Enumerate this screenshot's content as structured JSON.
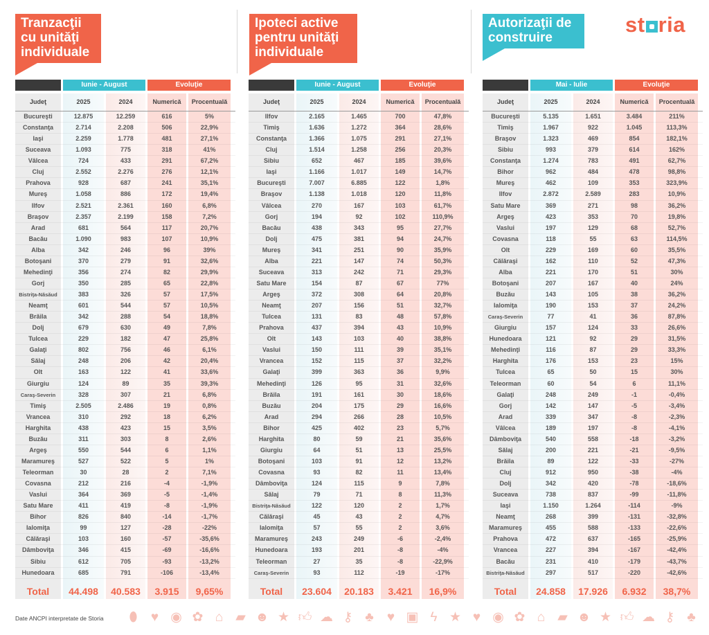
{
  "logo": "storia",
  "colors": {
    "accent": "#f06449",
    "teal": "#3bbfcf",
    "dark": "#3a3a3a"
  },
  "column_headers": {
    "judet": "Judeţ",
    "y2025": "2025",
    "y2024": "2024",
    "numerica": "Numerică",
    "procentuala": "Procentuală",
    "evolutie": "Evoluţie",
    "total": "Total"
  },
  "panels": [
    {
      "title": "Tranzacţii cu unităţi individuale",
      "period": "Iunie - August",
      "rows": [
        [
          "Bucureşti",
          "12.875",
          "12.259",
          "616",
          "5%"
        ],
        [
          "Constanţa",
          "2.714",
          "2.208",
          "506",
          "22,9%"
        ],
        [
          "Iaşi",
          "2.259",
          "1.778",
          "481",
          "27,1%"
        ],
        [
          "Suceava",
          "1.093",
          "775",
          "318",
          "41%"
        ],
        [
          "Vâlcea",
          "724",
          "433",
          "291",
          "67,2%"
        ],
        [
          "Cluj",
          "2.552",
          "2.276",
          "276",
          "12,1%"
        ],
        [
          "Prahova",
          "928",
          "687",
          "241",
          "35,1%"
        ],
        [
          "Mureş",
          "1.058",
          "886",
          "172",
          "19,4%"
        ],
        [
          "Ilfov",
          "2.521",
          "2.361",
          "160",
          "6,8%"
        ],
        [
          "Braşov",
          "2.357",
          "2.199",
          "158",
          "7,2%"
        ],
        [
          "Arad",
          "681",
          "564",
          "117",
          "20,7%"
        ],
        [
          "Bacău",
          "1.090",
          "983",
          "107",
          "10,9%"
        ],
        [
          "Alba",
          "342",
          "246",
          "96",
          "39%"
        ],
        [
          "Botoşani",
          "370",
          "279",
          "91",
          "32,6%"
        ],
        [
          "Mehedinţi",
          "356",
          "274",
          "82",
          "29,9%"
        ],
        [
          "Gorj",
          "350",
          "285",
          "65",
          "22,8%"
        ],
        [
          "Bistriţa-Năsăud",
          "383",
          "326",
          "57",
          "17,5%"
        ],
        [
          "Neamţ",
          "601",
          "544",
          "57",
          "10,5%"
        ],
        [
          "Brăila",
          "342",
          "288",
          "54",
          "18,8%"
        ],
        [
          "Dolj",
          "679",
          "630",
          "49",
          "7,8%"
        ],
        [
          "Tulcea",
          "229",
          "182",
          "47",
          "25,8%"
        ],
        [
          "Galaţi",
          "802",
          "756",
          "46",
          "6,1%"
        ],
        [
          "Sălaj",
          "248",
          "206",
          "42",
          "20,4%"
        ],
        [
          "Olt",
          "163",
          "122",
          "41",
          "33,6%"
        ],
        [
          "Giurgiu",
          "124",
          "89",
          "35",
          "39,3%"
        ],
        [
          "Caraş-Severin",
          "328",
          "307",
          "21",
          "6,8%"
        ],
        [
          "Timiş",
          "2.505",
          "2.486",
          "19",
          "0,8%"
        ],
        [
          "Vrancea",
          "310",
          "292",
          "18",
          "6,2%"
        ],
        [
          "Harghita",
          "438",
          "423",
          "15",
          "3,5%"
        ],
        [
          "Buzău",
          "311",
          "303",
          "8",
          "2,6%"
        ],
        [
          "Argeş",
          "550",
          "544",
          "6",
          "1,1%"
        ],
        [
          "Maramureş",
          "527",
          "522",
          "5",
          "1%"
        ],
        [
          "Teleorman",
          "30",
          "28",
          "2",
          "7,1%"
        ],
        [
          "Covasna",
          "212",
          "216",
          "-4",
          "-1,9%"
        ],
        [
          "Vaslui",
          "364",
          "369",
          "-5",
          "-1,4%"
        ],
        [
          "Satu Mare",
          "411",
          "419",
          "-8",
          "-1,9%"
        ],
        [
          "Bihor",
          "826",
          "840",
          "-14",
          "-1,7%"
        ],
        [
          "Ialomiţa",
          "99",
          "127",
          "-28",
          "-22%"
        ],
        [
          "Călăraşi",
          "103",
          "160",
          "-57",
          "-35,6%"
        ],
        [
          "Dâmboviţa",
          "346",
          "415",
          "-69",
          "-16,6%"
        ],
        [
          "Sibiu",
          "612",
          "705",
          "-93",
          "-13,2%"
        ],
        [
          "Hunedoara",
          "685",
          "791",
          "-106",
          "-13,4%"
        ]
      ],
      "total": [
        "44.498",
        "40.583",
        "3.915",
        "9,65%"
      ]
    },
    {
      "title": "Ipoteci active pentru unităţi individuale",
      "period": "Iunie - August",
      "rows": [
        [
          "Ilfov",
          "2.165",
          "1.465",
          "700",
          "47,8%"
        ],
        [
          "Timiş",
          "1.636",
          "1.272",
          "364",
          "28,6%"
        ],
        [
          "Constanţa",
          "1.366",
          "1.075",
          "291",
          "27,1%"
        ],
        [
          "Cluj",
          "1.514",
          "1.258",
          "256",
          "20,3%"
        ],
        [
          "Sibiu",
          "652",
          "467",
          "185",
          "39,6%"
        ],
        [
          "Iaşi",
          "1.166",
          "1.017",
          "149",
          "14,7%"
        ],
        [
          "Bucureşti",
          "7.007",
          "6.885",
          "122",
          "1,8%"
        ],
        [
          "Braşov",
          "1.138",
          "1.018",
          "120",
          "11,8%"
        ],
        [
          "Vâlcea",
          "270",
          "167",
          "103",
          "61,7%"
        ],
        [
          "Gorj",
          "194",
          "92",
          "102",
          "110,9%"
        ],
        [
          "Bacău",
          "438",
          "343",
          "95",
          "27,7%"
        ],
        [
          "Dolj",
          "475",
          "381",
          "94",
          "24,7%"
        ],
        [
          "Mureş",
          "341",
          "251",
          "90",
          "35,9%"
        ],
        [
          "Alba",
          "221",
          "147",
          "74",
          "50,3%"
        ],
        [
          "Suceava",
          "313",
          "242",
          "71",
          "29,3%"
        ],
        [
          "Satu Mare",
          "154",
          "87",
          "67",
          "77%"
        ],
        [
          "Argeş",
          "372",
          "308",
          "64",
          "20,8%"
        ],
        [
          "Neamţ",
          "207",
          "156",
          "51",
          "32,7%"
        ],
        [
          "Tulcea",
          "131",
          "83",
          "48",
          "57,8%"
        ],
        [
          "Prahova",
          "437",
          "394",
          "43",
          "10,9%"
        ],
        [
          "Olt",
          "143",
          "103",
          "40",
          "38,8%"
        ],
        [
          "Vaslui",
          "150",
          "111",
          "39",
          "35,1%"
        ],
        [
          "Vrancea",
          "152",
          "115",
          "37",
          "32,2%"
        ],
        [
          "Galaţi",
          "399",
          "363",
          "36",
          "9,9%"
        ],
        [
          "Mehedinţi",
          "126",
          "95",
          "31",
          "32,6%"
        ],
        [
          "Brăila",
          "191",
          "161",
          "30",
          "18,6%"
        ],
        [
          "Buzău",
          "204",
          "175",
          "29",
          "16,6%"
        ],
        [
          "Arad",
          "294",
          "266",
          "28",
          "10,5%"
        ],
        [
          "Bihor",
          "425",
          "402",
          "23",
          "5,7%"
        ],
        [
          "Harghita",
          "80",
          "59",
          "21",
          "35,6%"
        ],
        [
          "Giurgiu",
          "64",
          "51",
          "13",
          "25,5%"
        ],
        [
          "Botoşani",
          "103",
          "91",
          "12",
          "13,2%"
        ],
        [
          "Covasna",
          "93",
          "82",
          "11",
          "13,4%"
        ],
        [
          "Dâmboviţa",
          "124",
          "115",
          "9",
          "7,8%"
        ],
        [
          "Sălaj",
          "79",
          "71",
          "8",
          "11,3%"
        ],
        [
          "Bistriţa-Năsăud",
          "122",
          "120",
          "2",
          "1,7%"
        ],
        [
          "Călăraşi",
          "45",
          "43",
          "2",
          "4,7%"
        ],
        [
          "Ialomiţa",
          "57",
          "55",
          "2",
          "3,6%"
        ],
        [
          "Maramureş",
          "243",
          "249",
          "-6",
          "-2,4%"
        ],
        [
          "Hunedoara",
          "193",
          "201",
          "-8",
          "-4%"
        ],
        [
          "Teleorman",
          "27",
          "35",
          "-8",
          "-22,9%"
        ],
        [
          "Caraş-Severin",
          "93",
          "112",
          "-19",
          "-17%"
        ]
      ],
      "total": [
        "23.604",
        "20.183",
        "3.421",
        "16,9%"
      ]
    },
    {
      "title": "Autorizaţii de construire",
      "period": "Mai - Iulie",
      "rows": [
        [
          "Bucureşti",
          "5.135",
          "1.651",
          "3.484",
          "211%"
        ],
        [
          "Timiş",
          "1.967",
          "922",
          "1.045",
          "113,3%"
        ],
        [
          "Braşov",
          "1.323",
          "469",
          "854",
          "182,1%"
        ],
        [
          "Sibiu",
          "993",
          "379",
          "614",
          "162%"
        ],
        [
          "Constanţa",
          "1.274",
          "783",
          "491",
          "62,7%"
        ],
        [
          "Bihor",
          "962",
          "484",
          "478",
          "98,8%"
        ],
        [
          "Mureş",
          "462",
          "109",
          "353",
          "323,9%"
        ],
        [
          "Ilfov",
          "2.872",
          "2.589",
          "283",
          "10,9%"
        ],
        [
          "Satu Mare",
          "369",
          "271",
          "98",
          "36,2%"
        ],
        [
          "Argeş",
          "423",
          "353",
          "70",
          "19,8%"
        ],
        [
          "Vaslui",
          "197",
          "129",
          "68",
          "52,7%"
        ],
        [
          "Covasna",
          "118",
          "55",
          "63",
          "114,5%"
        ],
        [
          "Olt",
          "229",
          "169",
          "60",
          "35,5%"
        ],
        [
          "Călăraşi",
          "162",
          "110",
          "52",
          "47,3%"
        ],
        [
          "Alba",
          "221",
          "170",
          "51",
          "30%"
        ],
        [
          "Botoşani",
          "207",
          "167",
          "40",
          "24%"
        ],
        [
          "Buzău",
          "143",
          "105",
          "38",
          "36,2%"
        ],
        [
          "Ialomiţa",
          "190",
          "153",
          "37",
          "24,2%"
        ],
        [
          "Caraş-Severin",
          "77",
          "41",
          "36",
          "87,8%"
        ],
        [
          "Giurgiu",
          "157",
          "124",
          "33",
          "26,6%"
        ],
        [
          "Hunedoara",
          "121",
          "92",
          "29",
          "31,5%"
        ],
        [
          "Mehedinţi",
          "116",
          "87",
          "29",
          "33,3%"
        ],
        [
          "Harghita",
          "176",
          "153",
          "23",
          "15%"
        ],
        [
          "Tulcea",
          "65",
          "50",
          "15",
          "30%"
        ],
        [
          "Teleorman",
          "60",
          "54",
          "6",
          "11,1%"
        ],
        [
          "Galaţi",
          "248",
          "249",
          "-1",
          "-0,4%"
        ],
        [
          "Gorj",
          "142",
          "147",
          "-5",
          "-3,4%"
        ],
        [
          "Arad",
          "339",
          "347",
          "-8",
          "-2,3%"
        ],
        [
          "Vâlcea",
          "189",
          "197",
          "-8",
          "-4,1%"
        ],
        [
          "Dâmboviţa",
          "540",
          "558",
          "-18",
          "-3,2%"
        ],
        [
          "Sălaj",
          "200",
          "221",
          "-21",
          "-9,5%"
        ],
        [
          "Brăila",
          "89",
          "122",
          "-33",
          "-27%"
        ],
        [
          "Cluj",
          "912",
          "950",
          "-38",
          "-4%"
        ],
        [
          "Dolj",
          "342",
          "420",
          "-78",
          "-18,6%"
        ],
        [
          "Suceava",
          "738",
          "837",
          "-99",
          "-11,8%"
        ],
        [
          "Iaşi",
          "1.150",
          "1.264",
          "-114",
          "-9%"
        ],
        [
          "Neamţ",
          "268",
          "399",
          "-131",
          "-32,8%"
        ],
        [
          "Maramureş",
          "455",
          "588",
          "-133",
          "-22,6%"
        ],
        [
          "Prahova",
          "472",
          "637",
          "-165",
          "-25,9%"
        ],
        [
          "Vrancea",
          "227",
          "394",
          "-167",
          "-42,4%"
        ],
        [
          "Bacău",
          "231",
          "410",
          "-179",
          "-43,7%"
        ],
        [
          "Bistriţa-Năsăud",
          "297",
          "517",
          "-220",
          "-42,6%"
        ]
      ],
      "total": [
        "24.858",
        "17.926",
        "6.932",
        "38,7%"
      ]
    }
  ],
  "footer": {
    "source": "Date ANCPI interpretate de Storia",
    "icons": [
      "pin-icon",
      "heart-icon",
      "eye-icon",
      "flower-icon",
      "house-icon",
      "speech-bubble-icon",
      "smiley-icon",
      "star-icon",
      "thumbs-up-icon",
      "cloud-icon",
      "key-icon",
      "tree-icon",
      "heart-icon",
      "briefcase-icon",
      "lightning-icon",
      "star-icon",
      "heart-icon",
      "eye-icon",
      "flower-icon",
      "house-icon",
      "speech-bubble-icon",
      "smiley-icon",
      "star-icon",
      "thumbs-up-icon",
      "cloud-icon",
      "key-icon",
      "tree-icon"
    ]
  }
}
